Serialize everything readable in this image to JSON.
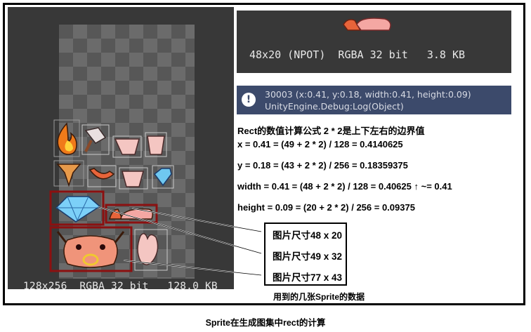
{
  "atlas": {
    "info": "128x256  RGBA 32 bit   128.0 KB"
  },
  "preview": {
    "info": "48x20 (NPOT)  RGBA 32 bit   3.8 KB"
  },
  "console": {
    "line1": "30003 (x:0.41, y:0.18, width:0.41, height:0.09)",
    "line2": "UnityEngine.Debug:Log(Object)"
  },
  "formulas": [
    "Rect的数值计算公式  2 * 2是上下左右的边界值",
    "x = 0.41 = (49 + 2 * 2) / 128 = 0.4140625",
    "y = 0.18 = (43 + 2 * 2) / 256 = 0.18359375",
    "width = 0.41 = (48 + 2 * 2) / 128 = 0.40625 ↑ ~= 0.41",
    "height = 0.09 = (20 + 2 * 2) / 256 = 0.09375"
  ],
  "sizes": [
    "图片尺寸48 x 20",
    "图片尺寸49 x 32",
    "图片尺寸77 x 43"
  ],
  "sprite_note": "用到的几张Sprite的数据",
  "caption": "Sprite在生成图集中rect的计算",
  "colors": {
    "panel": "#383838",
    "console": "#3c4a6b",
    "highlight": "#8b1010"
  }
}
